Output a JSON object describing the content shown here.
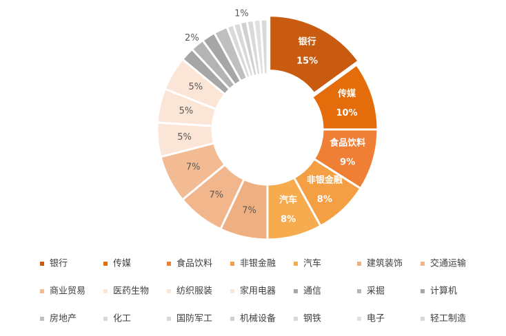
{
  "chart_data": {
    "type": "donut",
    "categories": [
      "银行",
      "传媒",
      "食品饮料",
      "非银金融",
      "汽车",
      "建筑装饰",
      "交通运输",
      "商业贸易",
      "医药生物",
      "纺织服装",
      "家用电器",
      "通信",
      "采掘",
      "计算机",
      "房地产",
      "化工",
      "国防军工",
      "机械设备",
      "钢铁",
      "电子",
      "轻工制造"
    ],
    "values": [
      15,
      10,
      9,
      8,
      8,
      7,
      7,
      7,
      5,
      5,
      5,
      2,
      2,
      2,
      2,
      1,
      1,
      1,
      1,
      1,
      1
    ],
    "value_labels": [
      "15%",
      "10%",
      "9%",
      "8%",
      "8%",
      "7%",
      "7%",
      "7%",
      "5%",
      "5%",
      "5%",
      null,
      "2%",
      null,
      null,
      null,
      null,
      "1%",
      null,
      null,
      null
    ],
    "colors": [
      "#c85b0f",
      "#e46c0a",
      "#ef7f35",
      "#f59f45",
      "#f6ab4e",
      "#efb081",
      "#f1b68c",
      "#f3bb93",
      "#fbe5d6",
      "#fbe5d6",
      "#fbe5d6",
      "#a6a6a6",
      "#b4b4b4",
      "#a6a6a6",
      "#bfbfbf",
      "#d9d9d9",
      "#d9d9d9",
      "#d0d0d0",
      "#d9d9d9",
      "#e0e0e0",
      "#d9d9d9"
    ],
    "legend": "bottom"
  }
}
